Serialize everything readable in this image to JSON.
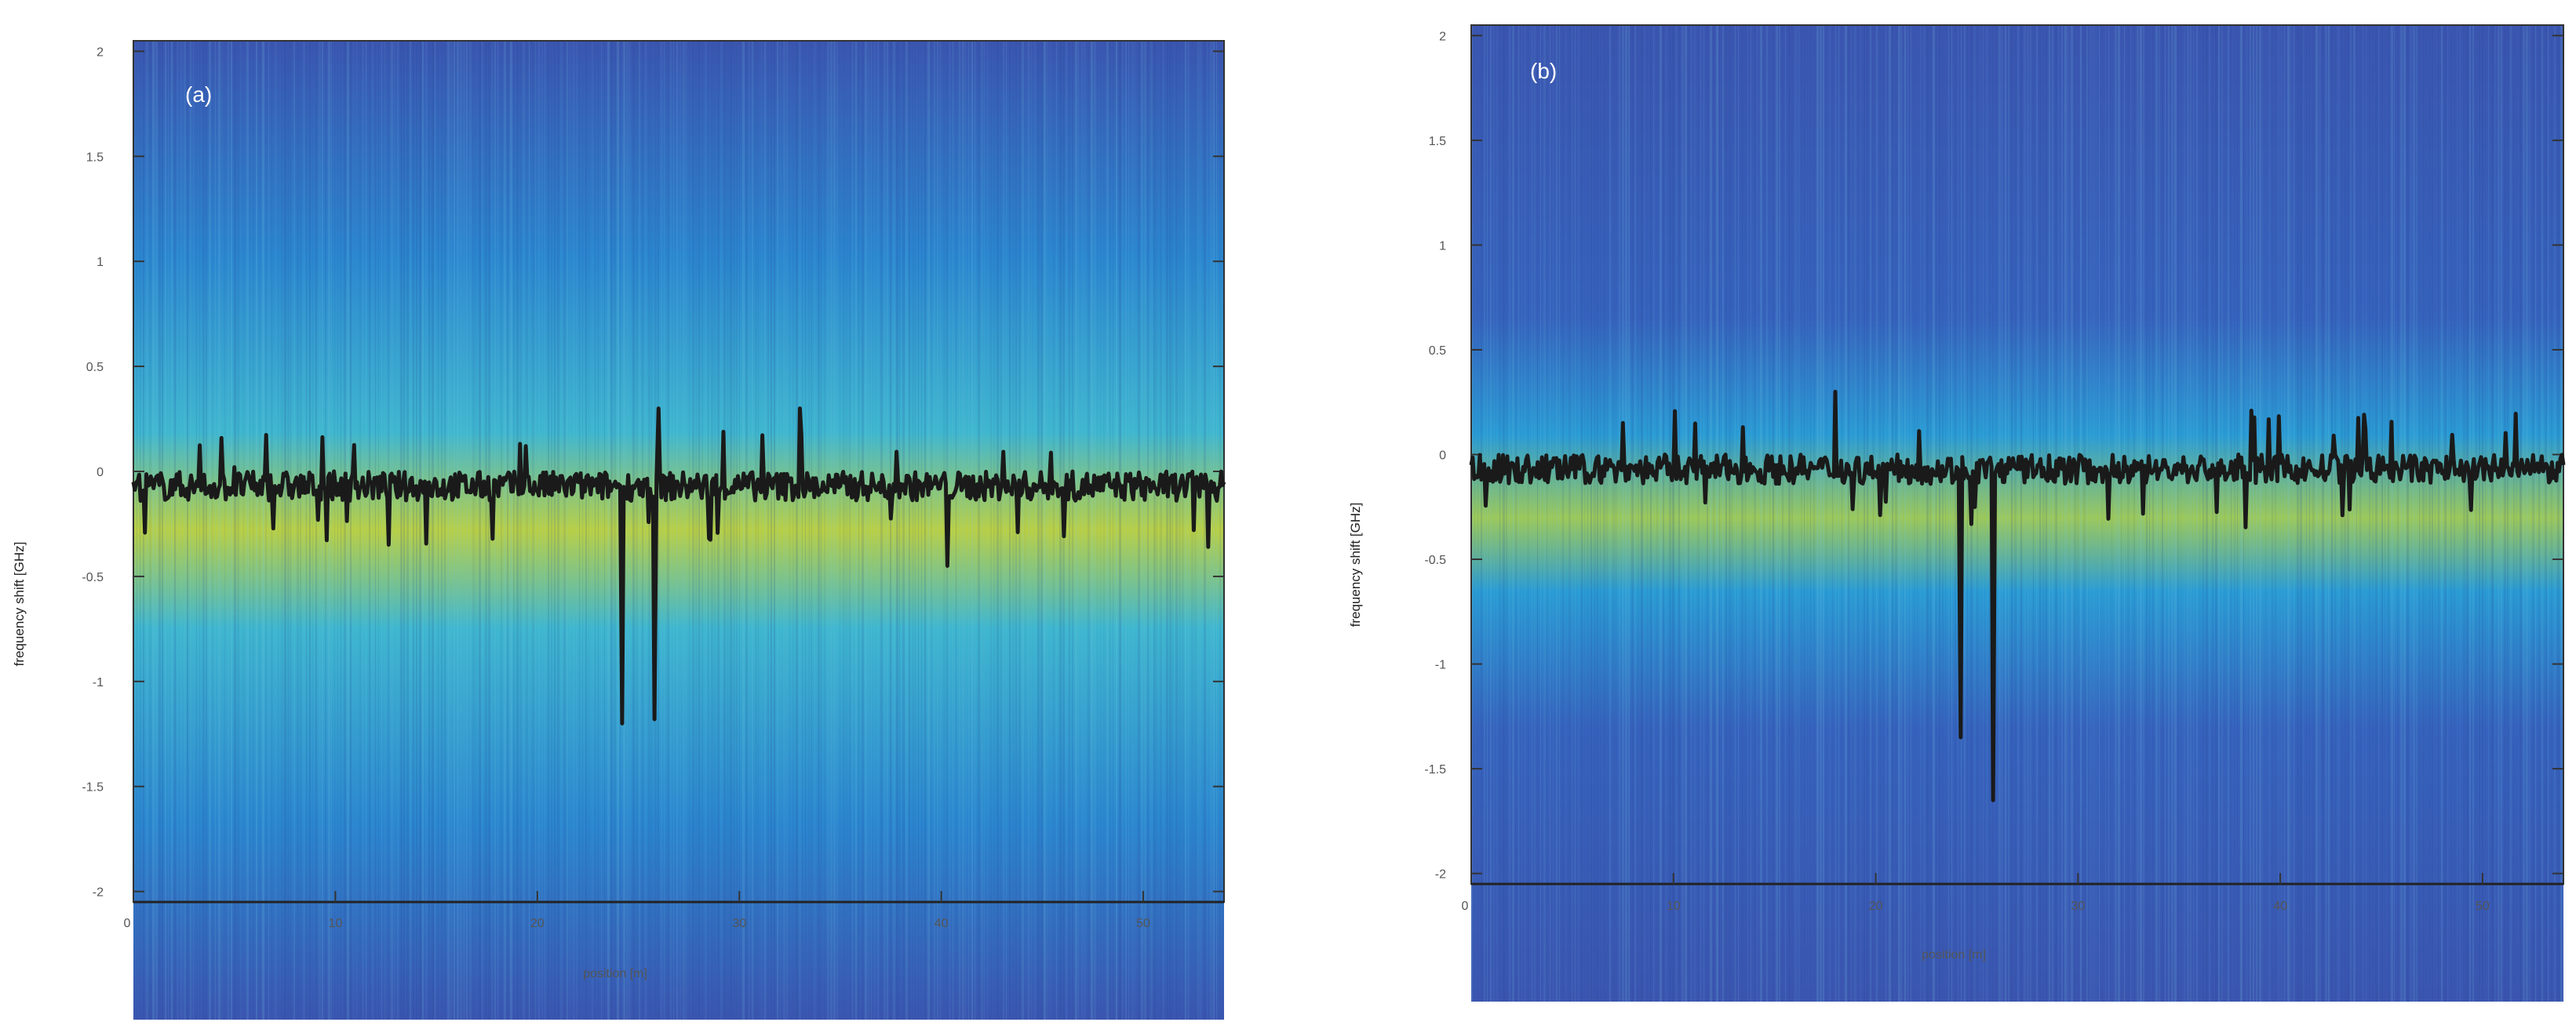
{
  "panels": [
    {
      "label": "(a)",
      "ylabel": "frequency shift  [GHz]",
      "xlabel": "position  [m]",
      "yticks": [
        "2",
        "1.5",
        "1",
        "0.5",
        "0",
        "-0.5",
        "-1",
        "-1.5",
        "-2"
      ],
      "xticks": [
        "0",
        "10",
        "20",
        "30",
        "40",
        "50"
      ]
    },
    {
      "label": "(b)",
      "ylabel": "frequency shift  [GHz]",
      "xlabel": "position  [m]",
      "yticks": [
        "2",
        "1.5",
        "1",
        "0.5",
        "0",
        "-0.5",
        "-1",
        "-1.5",
        "-2"
      ],
      "xticks": [
        "0",
        "10",
        "20",
        "30",
        "40",
        "50"
      ]
    }
  ],
  "colors": {
    "map_low": "#3b56b0",
    "map_mid": "#22a6d8",
    "map_high": "#c8d33a",
    "trace": "#1a1a1a",
    "axis": "#333333",
    "tick_text": "#555555"
  },
  "chart_data": [
    {
      "type": "heatmap",
      "title": "(a)",
      "xlabel": "position  [m]",
      "ylabel": "frequency shift  [GHz]",
      "xlim": [
        0,
        54
      ],
      "ylim": [
        -2.05,
        2.05
      ],
      "xticks": [
        0,
        10,
        20,
        30,
        40,
        50
      ],
      "yticks": [
        2,
        1.5,
        1,
        0.5,
        0,
        -0.5,
        -1,
        -1.5,
        -2
      ],
      "grid": false,
      "series": [
        {
          "values_x": [
            0,
            1,
            2,
            3,
            4,
            5,
            6,
            7,
            8,
            9,
            10,
            11,
            12,
            13,
            14,
            15,
            16,
            17,
            18,
            19,
            20,
            21,
            22,
            23,
            24,
            24.2,
            24.8,
            25,
            25.8,
            26,
            26.5,
            27,
            28,
            29,
            30,
            31,
            32,
            33,
            34,
            35,
            36,
            37,
            38,
            39,
            40,
            40.3,
            41,
            42,
            43,
            44,
            45,
            46,
            47,
            48,
            49,
            50,
            51,
            52,
            53,
            54
          ],
          "values_y": [
            -0.05,
            -0.08,
            -0.04,
            -0.1,
            -0.06,
            0.02,
            -0.09,
            -0.07,
            -0.05,
            -0.1,
            -0.06,
            -0.08,
            -0.04,
            -0.09,
            -0.07,
            -0.05,
            -0.1,
            -0.06,
            -0.08,
            -0.04,
            -0.09,
            -0.07,
            -0.05,
            -0.1,
            -0.06,
            -1.2,
            -0.08,
            -0.04,
            -1.18,
            0.3,
            -0.09,
            -0.07,
            -0.05,
            -0.1,
            -0.06,
            -0.08,
            -0.04,
            0.3,
            -0.09,
            -0.07,
            -0.05,
            -0.1,
            -0.06,
            -0.08,
            -0.04,
            -0.45,
            -0.09,
            -0.07,
            -0.05,
            -0.1,
            -0.06,
            -0.08,
            -0.04,
            -0.09,
            -0.07,
            -0.05,
            -0.1,
            -0.06,
            -0.08,
            -0.05
          ]
        }
      ]
    },
    {
      "type": "heatmap",
      "title": "(b)",
      "xlabel": "position  [m]",
      "ylabel": "frequency shift  [GHz]",
      "xlim": [
        0,
        54
      ],
      "ylim": [
        -2.05,
        2.05
      ],
      "xticks": [
        0,
        10,
        20,
        30,
        40,
        50
      ],
      "yticks": [
        2,
        1.5,
        1,
        0.5,
        0,
        -0.5,
        -1,
        -1.5,
        -2
      ],
      "grid": false,
      "series": [
        {
          "values_x": [
            0,
            1,
            2,
            3,
            4,
            5,
            6,
            7,
            8,
            9,
            10,
            11,
            12,
            13,
            14,
            15,
            16,
            17,
            18,
            19,
            20,
            21,
            22,
            23,
            24,
            24.2,
            24.8,
            25,
            25.8,
            26,
            26.5,
            27,
            28,
            29,
            30,
            31,
            32,
            33,
            34,
            35,
            36,
            37,
            38,
            39,
            40,
            41,
            42,
            43,
            44,
            45,
            46,
            47,
            48,
            49,
            50,
            51,
            52,
            53,
            54
          ],
          "values_y": [
            -0.05,
            -0.08,
            -0.04,
            -0.1,
            -0.06,
            -0.07,
            -0.09,
            -0.05,
            -0.06,
            -0.1,
            -0.06,
            -0.08,
            -0.04,
            -0.09,
            -0.07,
            -0.05,
            -0.1,
            -0.06,
            0.3,
            -0.04,
            -0.09,
            -0.07,
            -0.05,
            -0.1,
            -0.06,
            -1.35,
            -0.08,
            -0.04,
            -1.65,
            -0.06,
            -0.09,
            -0.07,
            -0.05,
            -0.1,
            -0.06,
            -0.08,
            -0.04,
            -0.07,
            -0.09,
            -0.07,
            -0.05,
            -0.1,
            -0.06,
            -0.08,
            -0.04,
            -0.09,
            -0.07,
            -0.05,
            -0.1,
            -0.06,
            -0.08,
            -0.04,
            -0.09,
            -0.07,
            -0.05,
            -0.1,
            -0.06,
            -0.08,
            -0.05
          ]
        }
      ]
    }
  ]
}
